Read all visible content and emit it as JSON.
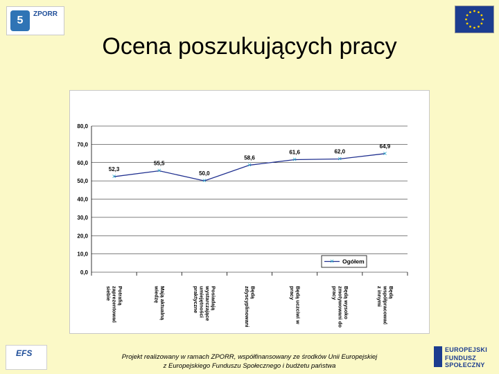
{
  "slide": {
    "title": "Ocena poszukujących pracy",
    "footer_line1": "Projekt realizowany w ramach ZPORR, współfinansowany ze środków Unii Europejskiej",
    "footer_line2": "z Europejskiego Funduszu Społecznego i budżetu państwa"
  },
  "logos": {
    "zporr_word": "ZPORR",
    "zporr_mark": "5",
    "efs_word": "EFS",
    "eu_fund_line1": "EUROPEJSKI",
    "eu_fund_line2": "FUNDUSZ SPOŁECZNY"
  },
  "colors": {
    "background": "#fbf9c7",
    "series_line": "#1f2f8f",
    "marker": "#2aa9c9",
    "grid": "#000000"
  },
  "chart_data": {
    "type": "line",
    "title": "",
    "xlabel": "",
    "ylabel": "",
    "ylim": [
      0,
      80
    ],
    "yticks": [
      "0,0",
      "10,0",
      "20,0",
      "30,0",
      "40,0",
      "50,0",
      "60,0",
      "70,0",
      "80,0"
    ],
    "grid": true,
    "legend_position": "inside-bottom-right",
    "categories": [
      [
        "Potrafią",
        "zaprezentować",
        "siebie"
      ],
      [
        "Mają aktualną",
        "wiedzę"
      ],
      [
        "Posiadają",
        "wystarczające",
        "umiejętności",
        "praktyczne"
      ],
      [
        "Będą",
        "zdyscyplinowani"
      ],
      [
        "Będą uczciwi w",
        "pracy"
      ],
      [
        "Będą wysoko",
        "zmotywowani do",
        "pracy"
      ],
      [
        "Będą",
        "współpracować",
        "z innymi"
      ]
    ],
    "series": [
      {
        "name": "Ogółem",
        "values": [
          52.3,
          55.5,
          50.0,
          58.6,
          61.6,
          62.0,
          64.9
        ],
        "labels": [
          "52,3",
          "55,5",
          "50,0",
          "58,6",
          "61,6",
          "62,0",
          "64,9"
        ]
      }
    ]
  }
}
